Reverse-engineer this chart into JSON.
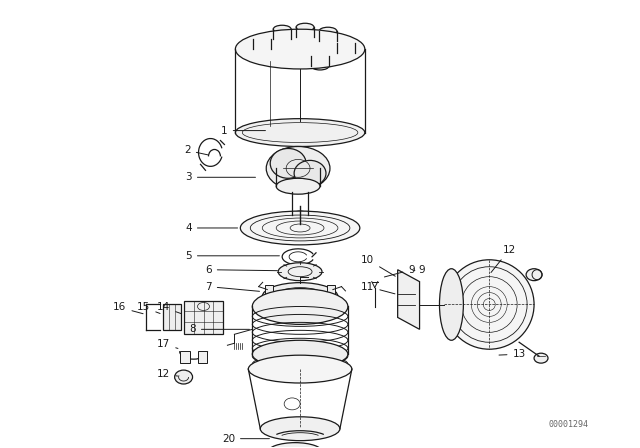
{
  "bg_color": "#ffffff",
  "line_color": "#1a1a1a",
  "label_color": "#1a1a1a",
  "watermark": "00001294",
  "figsize": [
    6.4,
    4.48
  ],
  "dpi": 100
}
